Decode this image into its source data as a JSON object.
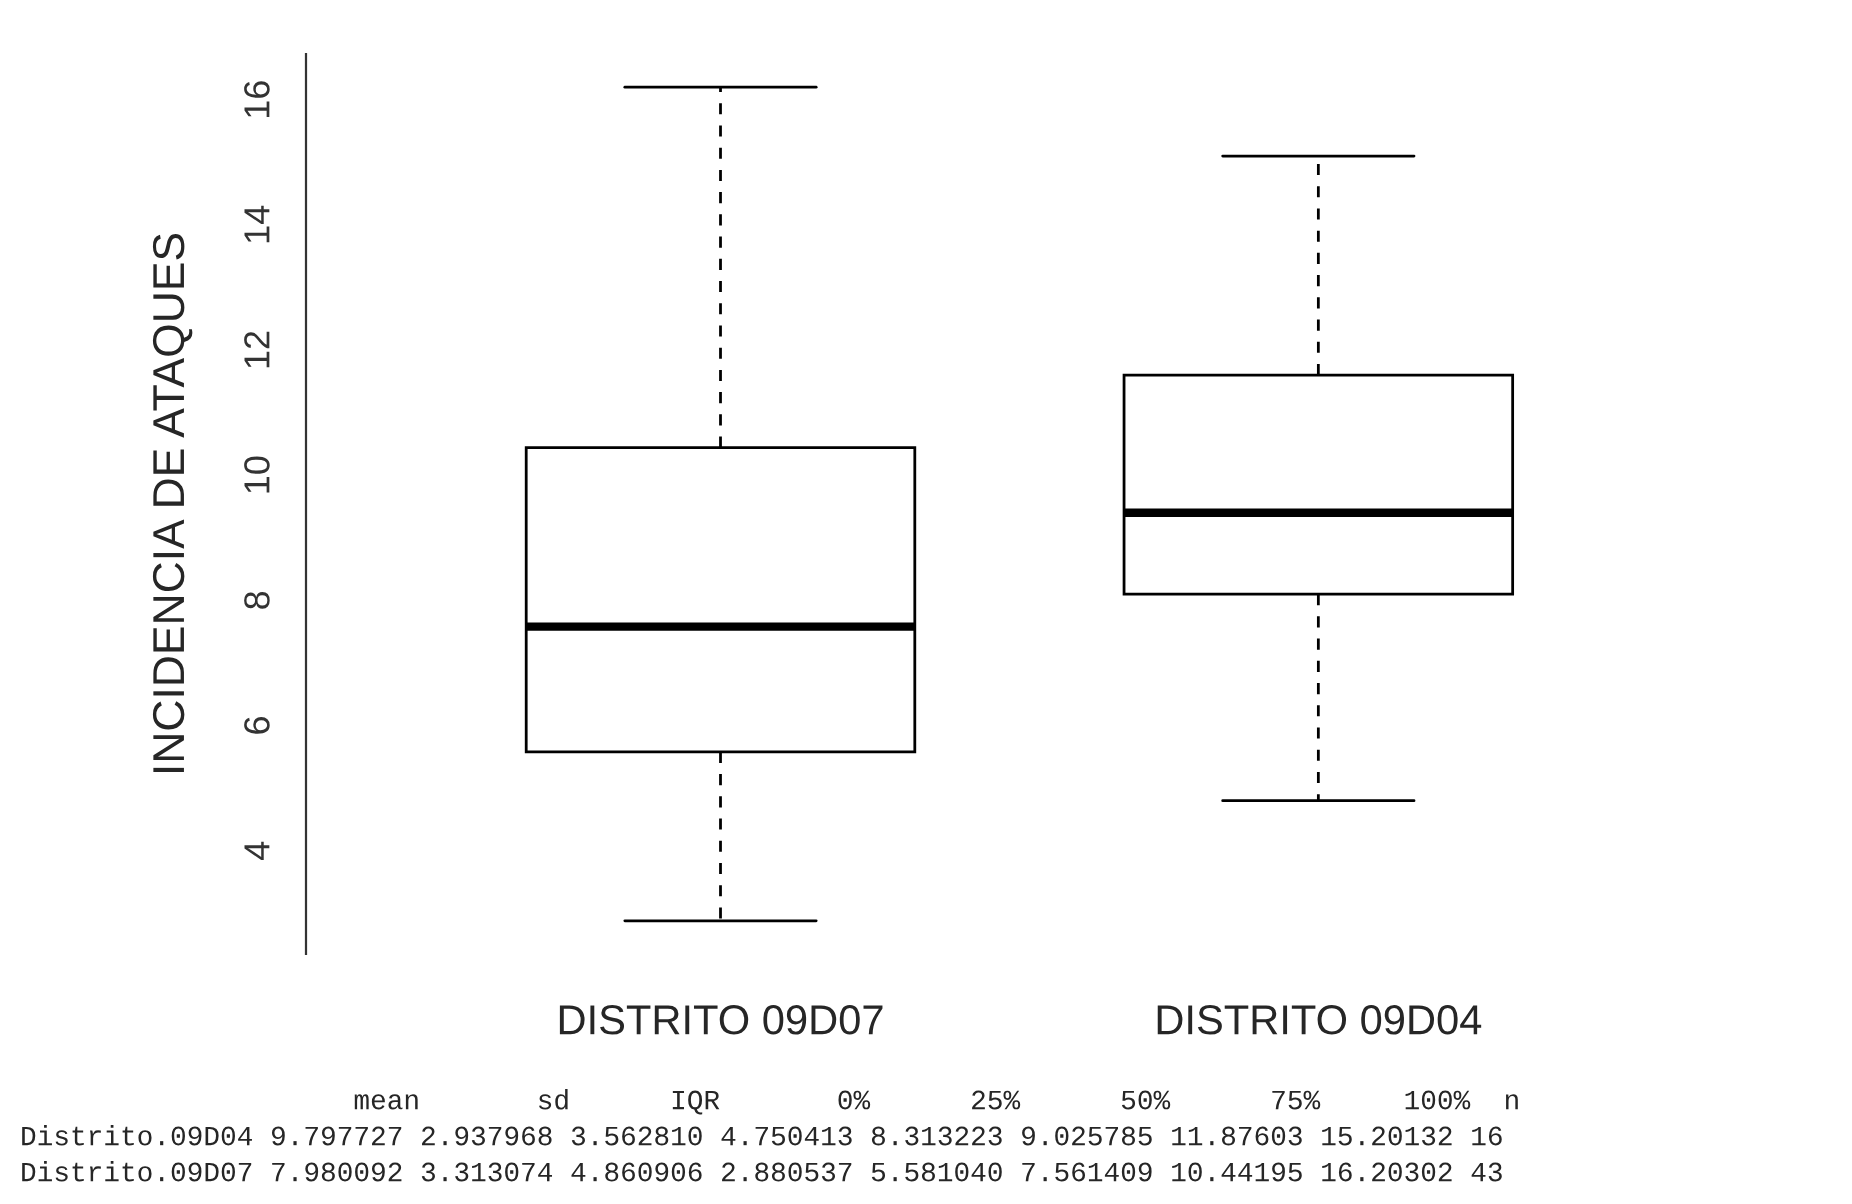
{
  "chart_data": {
    "type": "box",
    "ylabel": "INCIDENCIA DE ATAQUES",
    "categories": [
      "DISTRITO 09D07",
      "DISTRITO 09D04"
    ],
    "boxes": [
      {
        "low": 2.88,
        "q1": 5.58,
        "median": 7.58,
        "q3": 10.44,
        "high": 16.2
      },
      {
        "low": 4.8,
        "q1": 8.1,
        "median": 9.4,
        "q3": 11.6,
        "high": 15.1
      }
    ],
    "ylim": [
      2.35,
      16.73
    ],
    "yticks": [
      4,
      6,
      8,
      10,
      12,
      14,
      16
    ],
    "annotations": [
      "                    mean       sd      IQR       0%      25%      50%      75%     100%  n",
      "Distrito.09D04 9.797727 2.937968 3.562810 4.750413 8.313223 9.025785 11.87603 15.20132 16",
      "Distrito.09D07 7.980092 3.313074 4.860906 2.880537 5.581040 7.561409 10.44195 16.20302 43"
    ]
  }
}
